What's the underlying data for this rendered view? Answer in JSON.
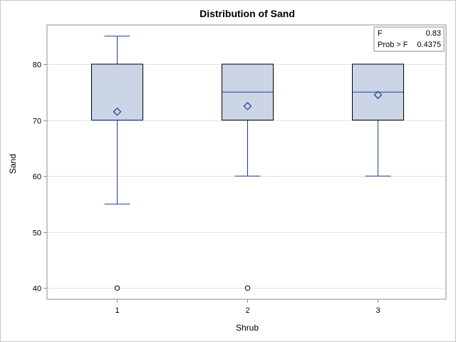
{
  "chart_data": {
    "type": "box",
    "title": "Distribution of Sand",
    "xlabel": "Shrub",
    "ylabel": "Sand",
    "ylim": [
      38,
      87
    ],
    "yticks": [
      40,
      50,
      60,
      70,
      80
    ],
    "grid": true,
    "categories": [
      "1",
      "2",
      "3"
    ],
    "boxes": [
      {
        "category": "1",
        "min": 55,
        "q1": 70,
        "median": 70,
        "q3": 80,
        "max": 85,
        "mean": 71.5,
        "outliers": [
          40
        ]
      },
      {
        "category": "2",
        "min": 60,
        "q1": 70,
        "median": 75,
        "q3": 80,
        "max": 80,
        "mean": 72.5,
        "outliers": [
          40
        ]
      },
      {
        "category": "3",
        "min": 60,
        "q1": 70,
        "median": 75,
        "q3": 80,
        "max": 80,
        "mean": 74.5,
        "outliers": []
      }
    ],
    "inset": {
      "position": "top-right",
      "rows": [
        {
          "label": "F",
          "value": "0.83"
        },
        {
          "label": "Prob > F",
          "value": "0.4375"
        }
      ]
    },
    "colors": {
      "box_fill": "#cbd5e6",
      "box_edge": "#000000",
      "whisker": "#1f3f94",
      "median": "#1f3f94",
      "mean_marker": "#1f3f94",
      "grid": "#e3e3e3",
      "axis": "#8c8c8c"
    }
  }
}
